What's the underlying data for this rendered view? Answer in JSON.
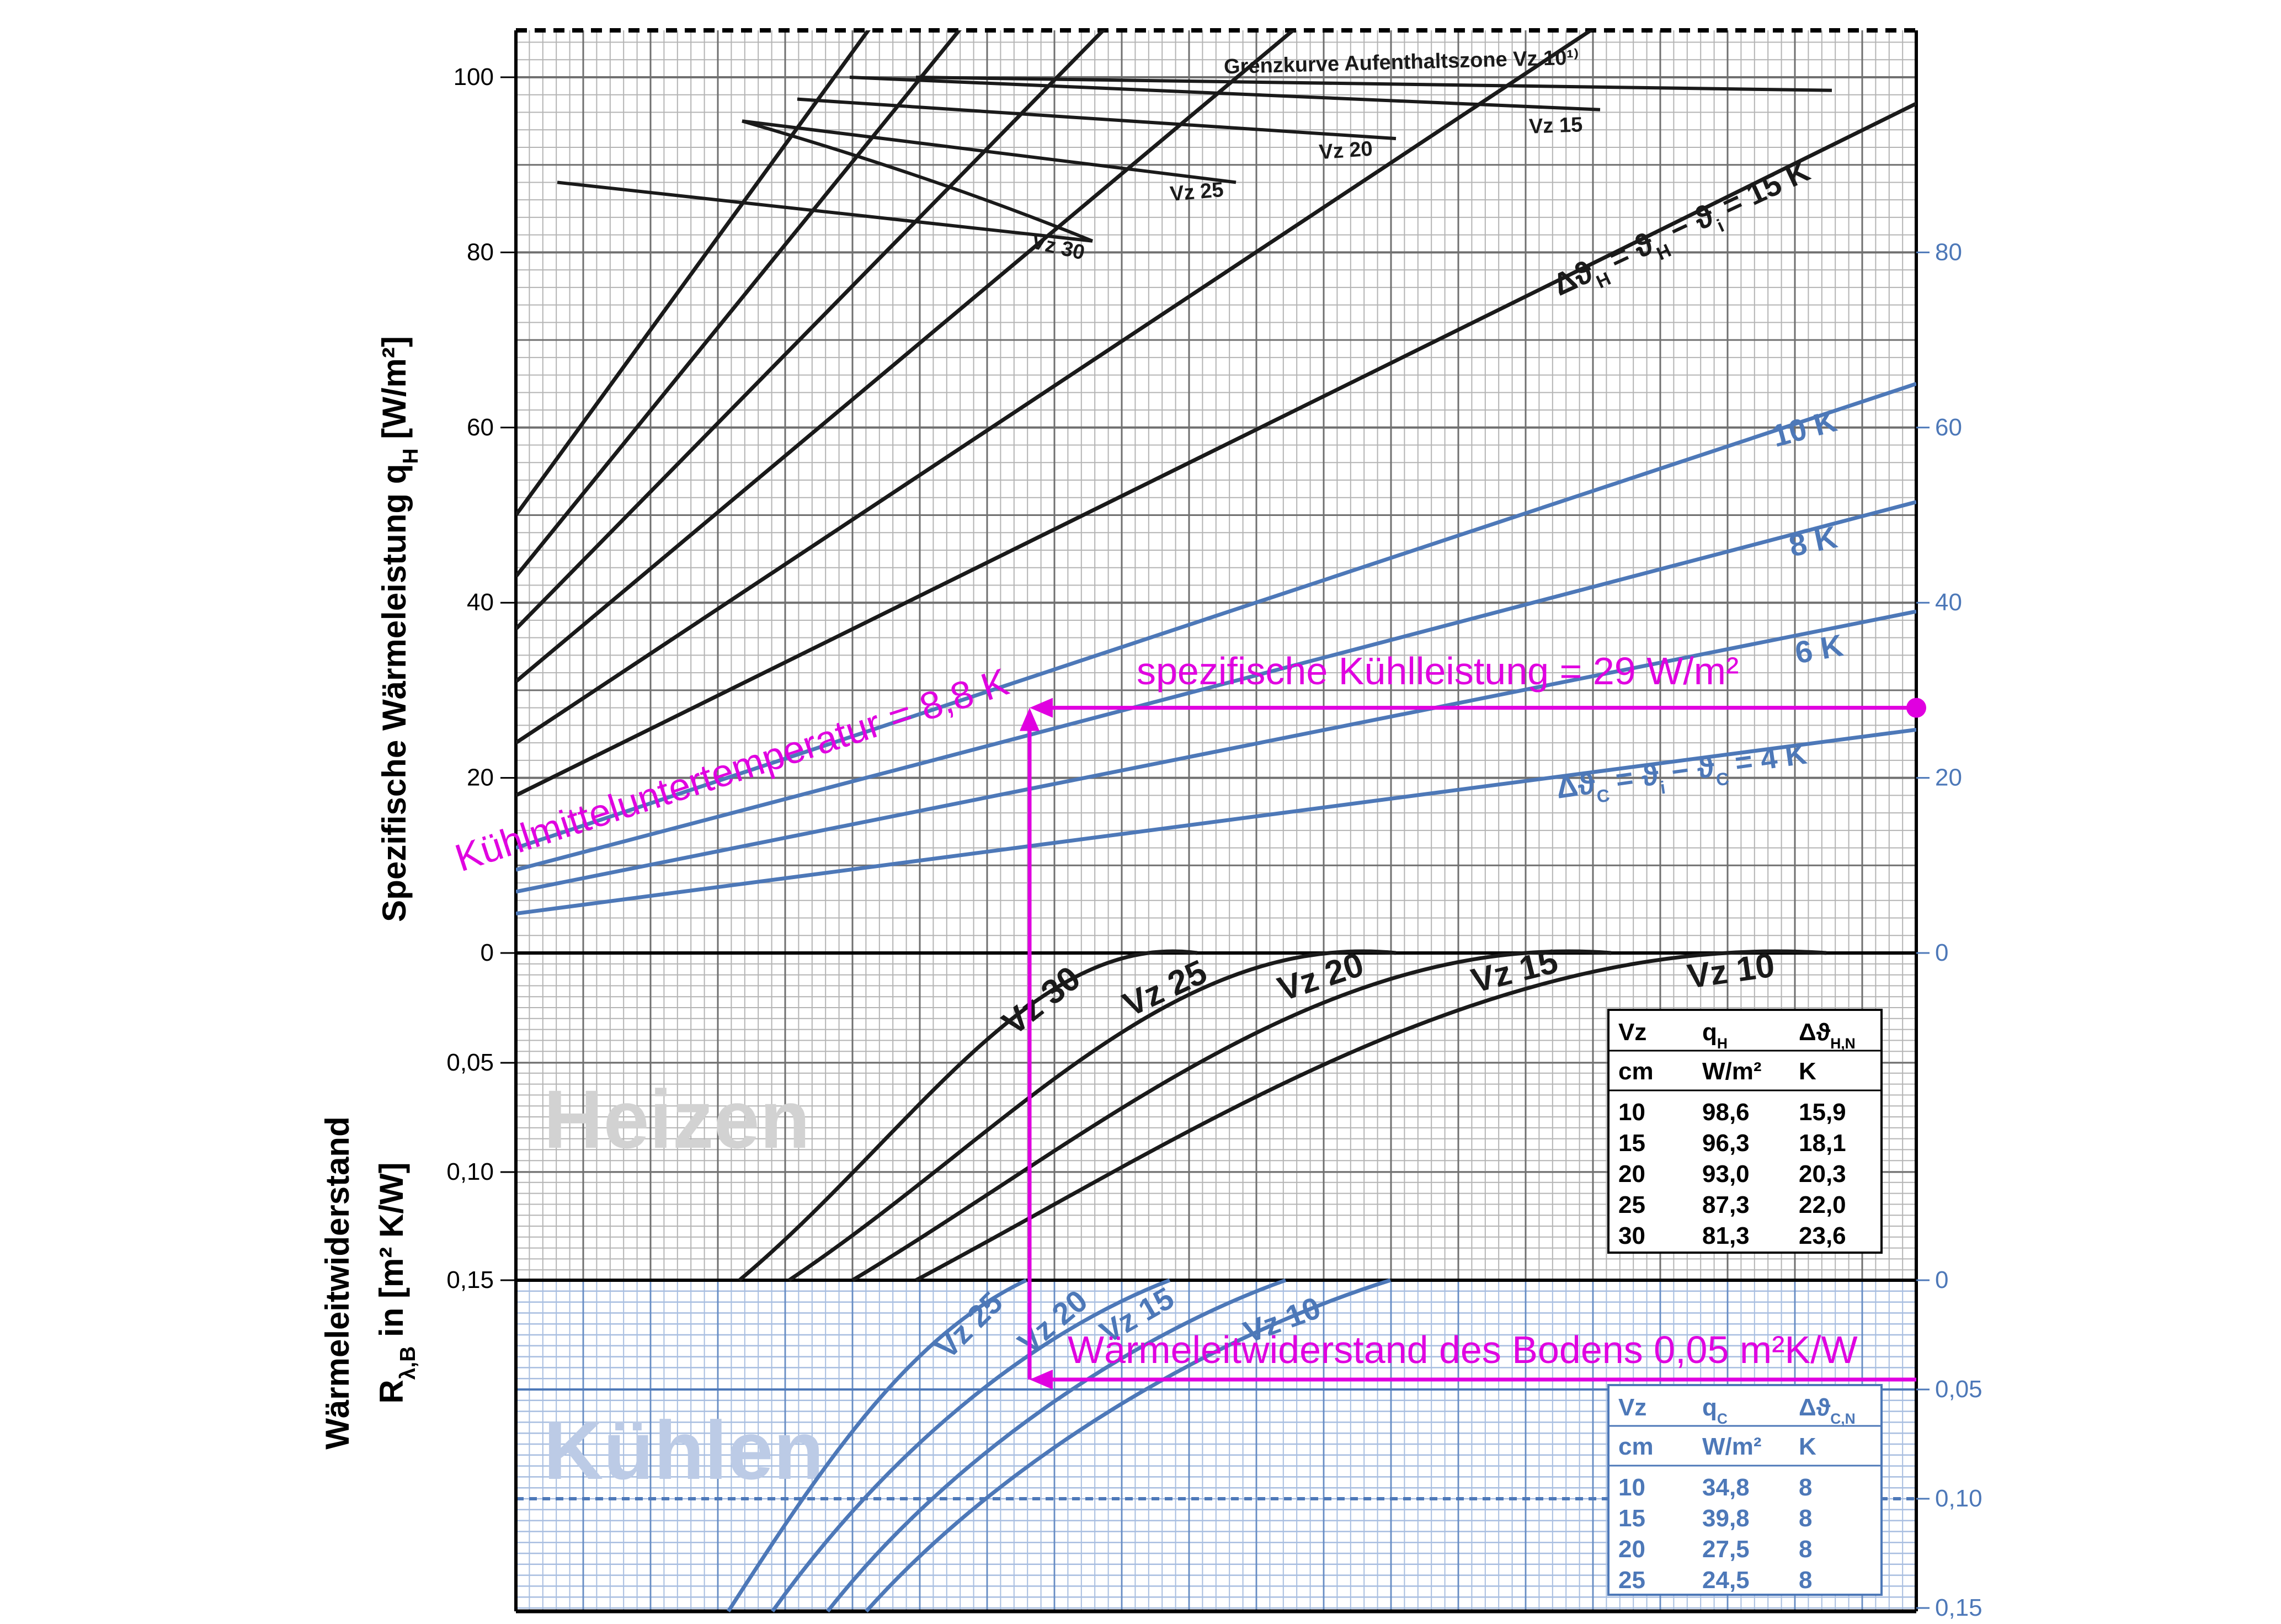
{
  "chart_data": {
    "type": "line",
    "colors": {
      "heating": "#1a1a1a",
      "cooling": "#4d78b8",
      "annotation": "#e000e0",
      "grid_major": "#707070",
      "grid_minor": "#b4b4b4",
      "cool_grid": "#a8bee0",
      "watermark_heat": "#d2d2d2",
      "watermark_cool": "#bccbe6"
    },
    "y_axis_top": {
      "label_main": "Spezifische Wärmeleistung q",
      "label_sub": "H",
      "label_unit": " [W/m²]",
      "ylim": [
        0,
        100
      ],
      "ticks_left": [
        "0",
        "20",
        "40",
        "60",
        "80",
        "100"
      ],
      "ticks_right": [
        "0",
        "20",
        "40",
        "60",
        "80"
      ]
    },
    "y_axis_bottom": {
      "label_line1": "Wärmeleitwiderstand",
      "label_line2": "R",
      "label_sub": "λ,B",
      "label_unit": " in [m² K/W]",
      "ticks_left_heat": [
        "0,05",
        "0,10",
        "0,15"
      ],
      "ticks_right_cool": [
        "0",
        "0,05",
        "0,10",
        "0,15"
      ]
    },
    "watermarks": {
      "heat": "Heizen",
      "cool": "Kühlen"
    },
    "heating_delta_lines": [
      {
        "y_at_left": 18,
        "y_at_right": 97,
        "label": "Δϑ",
        "label_sub": "H",
        "label_rest": " = ϑ",
        "label_sub2": "H",
        "label_rest2": " − ϑ",
        "label_sub3": "i",
        "label_rest3": " = 15 K"
      },
      {
        "y_at_left": 24,
        "y_at_right": 130,
        "label": ""
      },
      {
        "y_at_left": 31,
        "y_at_right": 165,
        "label": ""
      },
      {
        "y_at_left": 37,
        "y_at_right": 200,
        "label": ""
      },
      {
        "y_at_left": 43,
        "y_at_right": 240,
        "label": ""
      },
      {
        "y_at_left": 50,
        "y_at_right": 270,
        "label": ""
      }
    ],
    "cooling_delta_lines": [
      {
        "y_at_left": 4.5,
        "y_at_right": 25.5,
        "label": "Δϑ",
        "label_sub": "C",
        "label_rest": " = ϑ",
        "label_sub2": "i",
        "label_rest2": " − ϑ",
        "label_sub3": "C",
        "label_rest3": " = 4 K"
      },
      {
        "y_at_left": 7,
        "y_at_right": 39,
        "label": "6 K"
      },
      {
        "y_at_left": 9.5,
        "y_at_right": 51.5,
        "label": "8 K"
      },
      {
        "y_at_left": 12,
        "y_at_right": 65,
        "label": "10 K"
      }
    ],
    "grenzkurven": [
      {
        "label": "Grenzkurve Aufenthaltszone Vz 10¹⁾",
        "sup": "1)"
      },
      {
        "label": "Vz 15"
      },
      {
        "label": "Vz 20"
      },
      {
        "label": "Vz 25"
      },
      {
        "label": "Vz 30"
      }
    ],
    "heating_vz_curves": [
      "Vz 30",
      "Vz 25",
      "Vz 20",
      "Vz 15",
      "Vz 10"
    ],
    "cooling_vz_curves": [
      "Vz 25",
      "Vz 20",
      "Vz 15",
      "Vz 10"
    ],
    "heating_table": {
      "headers": [
        "Vz",
        "q",
        "Δϑ"
      ],
      "header_subs": [
        "",
        "H",
        "H,N"
      ],
      "units": [
        "cm",
        "W/m²",
        "K"
      ],
      "rows": [
        [
          "10",
          "98,6",
          "15,9"
        ],
        [
          "15",
          "96,3",
          "18,1"
        ],
        [
          "20",
          "93,0",
          "20,3"
        ],
        [
          "25",
          "87,3",
          "22,0"
        ],
        [
          "30",
          "81,3",
          "23,6"
        ]
      ]
    },
    "cooling_table": {
      "headers": [
        "Vz",
        "q",
        "Δϑ"
      ],
      "header_subs": [
        "",
        "C",
        "C,N"
      ],
      "units": [
        "cm",
        "W/m²",
        "K"
      ],
      "rows": [
        [
          "10",
          "34,8",
          "8"
        ],
        [
          "15",
          "39,8",
          "8"
        ],
        [
          "20",
          "27,5",
          "8"
        ],
        [
          "25",
          "24,5",
          "8"
        ]
      ]
    },
    "annotations": {
      "cooling_temp": "Kühlmitteluntertemperatur = 8,8 K",
      "cooling_power": "spezifische Kühlleistung = 29 W/m²",
      "floor_resistance": "Wärmeleitwiderstand des Bodens 0,05 m²K/W"
    }
  }
}
